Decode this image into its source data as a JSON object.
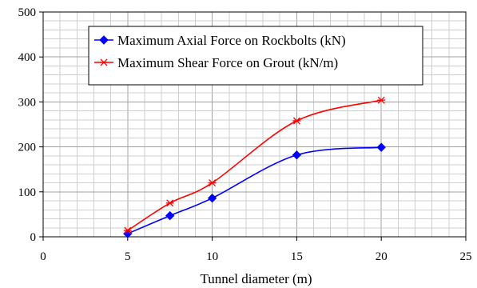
{
  "chart_data": {
    "type": "line",
    "xlabel": "Tunnel diameter (m)",
    "ylabel": "",
    "xlim": [
      0,
      25
    ],
    "ylim": [
      0,
      500
    ],
    "x_ticks": [
      0,
      5,
      10,
      15,
      20,
      25
    ],
    "y_ticks": [
      0,
      100,
      200,
      300,
      400,
      500
    ],
    "x_tick_labels": [
      "0",
      "5",
      "10",
      "15",
      "20",
      "25"
    ],
    "y_tick_labels": [
      "0",
      "100",
      "200",
      "300",
      "400",
      "500"
    ],
    "grid": true,
    "legend_position": "top-left",
    "series": [
      {
        "name": "Maximum Axial Force on Rockbolts (kN)",
        "color": "#0000FF",
        "marker": "diamond",
        "x": [
          5,
          7.5,
          10,
          15,
          20
        ],
        "y": [
          7,
          47,
          86,
          182,
          199
        ]
      },
      {
        "name": "Maximum Shear Force on Grout (kN/m)",
        "color": "#FF0000",
        "marker": "asterisk",
        "x": [
          5,
          7.5,
          10,
          15,
          20
        ],
        "y": [
          14,
          75,
          120,
          258,
          304
        ]
      }
    ]
  }
}
